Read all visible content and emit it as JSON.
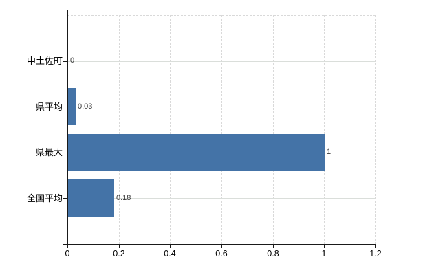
{
  "chart_data": {
    "type": "bar",
    "orientation": "horizontal",
    "title": "",
    "categories": [
      "中土佐町",
      "県平均",
      "県最大",
      "全国平均"
    ],
    "values": [
      0,
      0.03,
      1,
      0.18
    ],
    "value_labels": [
      "0",
      "0.03",
      "1",
      "0.18"
    ],
    "x_ticks": [
      0,
      0.2,
      0.4,
      0.6,
      0.8,
      1,
      1.2
    ],
    "x_tick_labels": [
      "0",
      "0.2",
      "0.4",
      "0.6",
      "0.8",
      "1",
      "1.2"
    ],
    "xlim": [
      0,
      1.2
    ],
    "grid": true,
    "legend": "none",
    "colors": {
      "bar": "#4473a7",
      "axis": "#1a1a1a",
      "grid": "#d9d9d9",
      "value_text": "#3a3a3a",
      "category_text": "#000000",
      "background": "#ffffff"
    }
  }
}
